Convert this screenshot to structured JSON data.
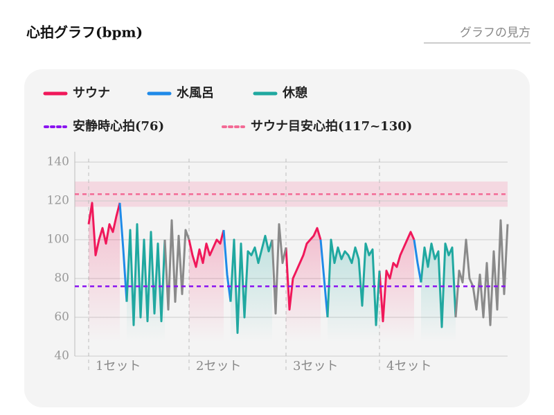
{
  "chart_data": {
    "type": "line",
    "title": "心拍グラフ(bpm)",
    "help_link": "グラフの見方",
    "xlim": [
      0,
      125
    ],
    "ylim": [
      40,
      140
    ],
    "yticks": [
      40,
      60,
      80,
      100,
      120,
      140
    ],
    "grid": true,
    "series": [
      {
        "name": "サウナ",
        "color": "#f0185a",
        "fill": true,
        "x": [
          4,
          5,
          6,
          7,
          8,
          9,
          10,
          11,
          12,
          13,
          33,
          34,
          35,
          36,
          37,
          38,
          39,
          40,
          41,
          42,
          43,
          61,
          62,
          63,
          64,
          65,
          66,
          67,
          68,
          69,
          70,
          71,
          88,
          89,
          90,
          91,
          92,
          93,
          94,
          95,
          96,
          97,
          98
        ],
        "values": [
          108,
          119,
          92,
          100,
          106,
          98,
          108,
          104,
          112,
          119,
          100,
          92,
          86,
          95,
          88,
          98,
          92,
          96,
          100,
          98,
          105,
          96,
          64,
          80,
          84,
          88,
          92,
          98,
          100,
          102,
          106,
          100,
          84,
          58,
          84,
          80,
          88,
          86,
          92,
          96,
          100,
          104,
          100
        ]
      },
      {
        "name": "水風呂",
        "color": "#1f8ae8",
        "fill": false,
        "x": [
          13,
          14,
          15,
          43,
          44,
          45,
          71,
          72,
          73,
          98,
          99,
          100
        ],
        "values": [
          119,
          95,
          68,
          105,
          82,
          68,
          100,
          80,
          60,
          100,
          88,
          78
        ]
      },
      {
        "name": "休憩",
        "color": "#20a8a0",
        "fill": true,
        "x": [
          15,
          16,
          17,
          18,
          19,
          20,
          21,
          22,
          23,
          24,
          25,
          26,
          45,
          46,
          47,
          48,
          49,
          50,
          51,
          52,
          53,
          54,
          55,
          56,
          57,
          73,
          74,
          75,
          76,
          77,
          78,
          79,
          80,
          81,
          82,
          83,
          84,
          85,
          86,
          87,
          88,
          100,
          101,
          102,
          103,
          104,
          105,
          106,
          107,
          108,
          109,
          110
        ],
        "values": [
          68,
          105,
          56,
          108,
          60,
          100,
          58,
          104,
          62,
          98,
          58,
          100,
          68,
          100,
          52,
          98,
          60,
          94,
          92,
          96,
          88,
          95,
          102,
          94,
          100,
          60,
          100,
          88,
          96,
          90,
          94,
          92,
          88,
          96,
          90,
          66,
          98,
          92,
          95,
          56,
          84,
          78,
          96,
          86,
          98,
          90,
          94,
          55,
          98,
          92,
          96,
          60
        ]
      },
      {
        "color": "#8a8a8a",
        "fill": false,
        "x": [
          26,
          27,
          28,
          29,
          30,
          31,
          32,
          33,
          57,
          58,
          59,
          60,
          61,
          110,
          111,
          112,
          113,
          114,
          115,
          116,
          117,
          118,
          119,
          120,
          121,
          122,
          123,
          124,
          125
        ],
        "values": [
          100,
          64,
          110,
          68,
          102,
          72,
          105,
          100,
          100,
          62,
          108,
          88,
          96,
          60,
          84,
          78,
          100,
          80,
          76,
          64,
          82,
          60,
          88,
          56,
          94,
          64,
          110,
          72,
          108
        ]
      }
    ],
    "resting": {
      "label": "安静時心拍(76)",
      "value": 76,
      "color": "#8a14f0"
    },
    "target": {
      "label": "サウナ目安心拍(117~130)",
      "low": 117,
      "high": 130,
      "color": "#f36a95"
    },
    "sets": [
      {
        "label": "1セット",
        "x": 4
      },
      {
        "label": "2セット",
        "x": 33
      },
      {
        "label": "3セット",
        "x": 61
      },
      {
        "label": "4セット",
        "x": 88
      }
    ]
  }
}
